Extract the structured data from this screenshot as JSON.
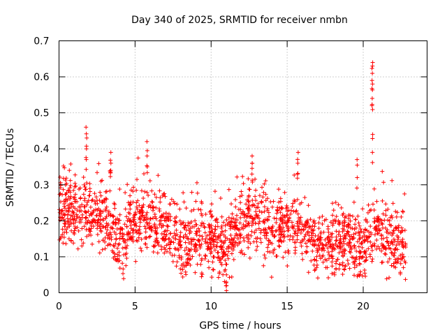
{
  "chart_data": {
    "type": "scatter",
    "title": "Day 340 of 2025, SRMTID for receiver nmbn",
    "xlabel": "GPS time / hours",
    "ylabel": "SRMTID / TECUs",
    "xlim": [
      0,
      24.2
    ],
    "ylim": [
      0,
      0.7
    ],
    "x_ticks": [
      0,
      5,
      10,
      15,
      20
    ],
    "x_tick_labels": [
      "0",
      "5",
      "10",
      "15",
      "20"
    ],
    "y_ticks": [
      0,
      0.1,
      0.2,
      0.3,
      0.4,
      0.5,
      0.6,
      0.7
    ],
    "y_tick_labels": [
      "0",
      "0.1",
      "0.2",
      "0.3",
      "0.4",
      "0.5",
      "0.6",
      "0.7"
    ],
    "grid": true,
    "marker": "+",
    "marker_color": "#ff0000",
    "series": [
      {
        "name": "SRMTID",
        "description": "about 4000 points from hour 0 to about 22.8, mostly between 0.05 and 0.35 TECU; the listed anchor points are the local median level and the listed spikes are the visible outlier columns",
        "x_range": [
          0,
          22.8
        ],
        "median_level": [
          [
            0.0,
            0.24
          ],
          [
            0.5,
            0.23
          ],
          [
            1.0,
            0.22
          ],
          [
            1.5,
            0.22
          ],
          [
            2.0,
            0.23
          ],
          [
            2.5,
            0.22
          ],
          [
            3.0,
            0.21
          ],
          [
            3.5,
            0.19
          ],
          [
            4.0,
            0.15
          ],
          [
            4.3,
            0.13
          ],
          [
            4.5,
            0.16
          ],
          [
            5.0,
            0.2
          ],
          [
            5.5,
            0.21
          ],
          [
            6.0,
            0.21
          ],
          [
            6.5,
            0.19
          ],
          [
            7.0,
            0.18
          ],
          [
            7.5,
            0.15
          ],
          [
            8.0,
            0.14
          ],
          [
            8.5,
            0.15
          ],
          [
            9.0,
            0.16
          ],
          [
            9.5,
            0.15
          ],
          [
            10.0,
            0.14
          ],
          [
            10.5,
            0.13
          ],
          [
            11.0,
            0.12
          ],
          [
            11.5,
            0.16
          ],
          [
            12.0,
            0.2
          ],
          [
            12.5,
            0.21
          ],
          [
            13.0,
            0.21
          ],
          [
            13.5,
            0.19
          ],
          [
            14.0,
            0.18
          ],
          [
            14.5,
            0.19
          ],
          [
            15.0,
            0.2
          ],
          [
            15.5,
            0.19
          ],
          [
            16.0,
            0.17
          ],
          [
            16.5,
            0.15
          ],
          [
            17.0,
            0.14
          ],
          [
            17.5,
            0.13
          ],
          [
            18.0,
            0.13
          ],
          [
            18.5,
            0.14
          ],
          [
            19.0,
            0.14
          ],
          [
            19.5,
            0.14
          ],
          [
            20.0,
            0.13
          ],
          [
            20.5,
            0.16
          ],
          [
            21.0,
            0.18
          ],
          [
            21.5,
            0.15
          ],
          [
            22.0,
            0.14
          ],
          [
            22.5,
            0.14
          ],
          [
            22.8,
            0.13
          ]
        ],
        "spikes": [
          {
            "x": 1.8,
            "y": [
              0.37,
              0.4,
              0.43,
              0.46
            ]
          },
          {
            "x": 3.4,
            "y": [
              0.34,
              0.36,
              0.39
            ]
          },
          {
            "x": 5.8,
            "y": [
              0.35,
              0.38,
              0.42
            ]
          },
          {
            "x": 11.0,
            "y": [
              0.02,
              0.03,
              0.05
            ]
          },
          {
            "x": 12.7,
            "y": [
              0.33,
              0.36,
              0.38
            ]
          },
          {
            "x": 15.7,
            "y": [
              0.33,
              0.36,
              0.39
            ]
          },
          {
            "x": 19.6,
            "y": [
              0.32,
              0.37
            ]
          },
          {
            "x": 20.6,
            "y": [
              0.39,
              0.44,
              0.52,
              0.54,
              0.58,
              0.59,
              0.63,
              0.64
            ]
          }
        ]
      }
    ]
  }
}
